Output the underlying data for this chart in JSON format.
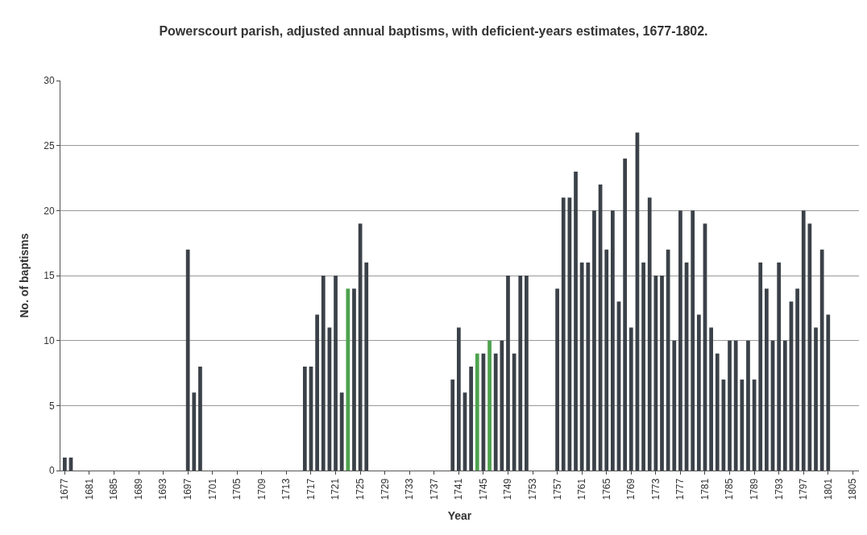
{
  "chart_data": {
    "type": "bar",
    "title": "Powerscourt parish, adjusted annual baptisms, with deficient-years estimates, 1677-1802.",
    "xlabel": "Year",
    "ylabel": "No. of baptisms",
    "series": [
      {
        "color": "#3b4148",
        "x": [
          1677,
          1678,
          1697,
          1698,
          1699,
          1716,
          1717,
          1718,
          1719,
          1720,
          1721,
          1722,
          1724,
          1725,
          1726,
          1740,
          1741,
          1742,
          1743,
          1745,
          1747,
          1748,
          1749,
          1750,
          1751,
          1752,
          1757,
          1758,
          1759,
          1760,
          1761,
          1762,
          1763,
          1764,
          1765,
          1766,
          1767,
          1768,
          1769,
          1770,
          1771,
          1772,
          1773,
          1774,
          1775,
          1776,
          1777,
          1778,
          1779,
          1780,
          1781,
          1782,
          1783,
          1784,
          1785,
          1786,
          1787,
          1788,
          1789,
          1790,
          1791,
          1792,
          1793,
          1794,
          1795,
          1796,
          1797,
          1798,
          1799,
          1800,
          1801
        ],
        "values": [
          1,
          1,
          17,
          6,
          8,
          8,
          8,
          12,
          15,
          11,
          15,
          6,
          14,
          19,
          16,
          7,
          11,
          6,
          8,
          9,
          9,
          10,
          15,
          9,
          15,
          15,
          14,
          21,
          21,
          23,
          16,
          16,
          20,
          22,
          17,
          20,
          13,
          24,
          11,
          26,
          16,
          21,
          15,
          15,
          17,
          10,
          20,
          16,
          20,
          12,
          19,
          11,
          9,
          7,
          10,
          10,
          7,
          10,
          7,
          16,
          14,
          10,
          16,
          10,
          13,
          14,
          20,
          19,
          11,
          17,
          12
        ]
      },
      {
        "color": "#4ea24e",
        "x": [
          1723,
          1744,
          1746
        ],
        "values": [
          14,
          9,
          10
        ]
      }
    ],
    "xlim": [
      1676.3,
      1806
    ],
    "xticks": [
      1677,
      1681,
      1685,
      1689,
      1693,
      1697,
      1701,
      1705,
      1709,
      1713,
      1717,
      1721,
      1725,
      1729,
      1733,
      1737,
      1741,
      1745,
      1749,
      1753,
      1757,
      1761,
      1765,
      1769,
      1773,
      1777,
      1781,
      1785,
      1789,
      1793,
      1797,
      1801,
      1805
    ],
    "ylim": [
      0,
      30
    ],
    "yticks": [
      0,
      5,
      10,
      15,
      20,
      25,
      30
    ],
    "grid": "y"
  }
}
